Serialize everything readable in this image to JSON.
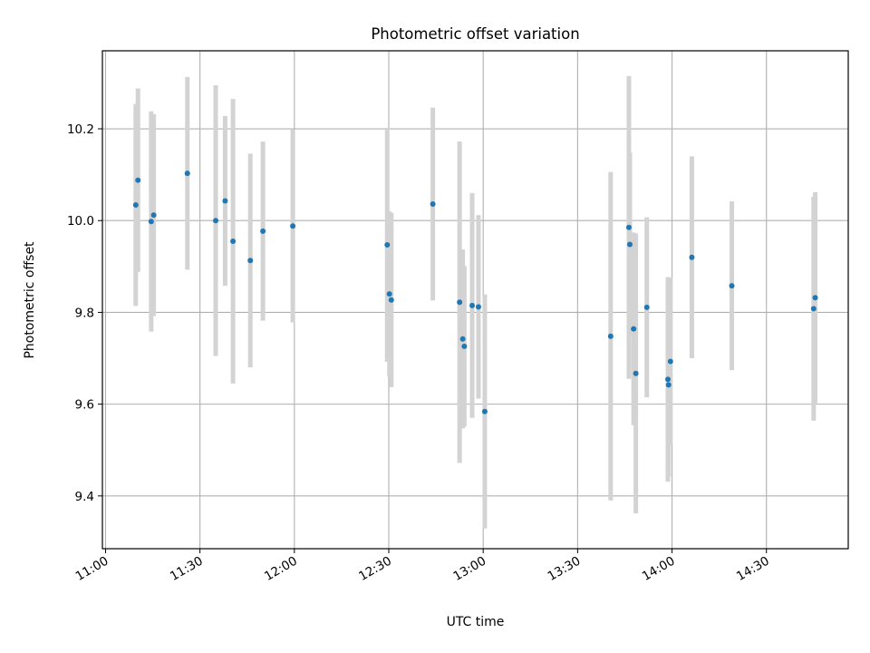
{
  "chart_data": {
    "type": "scatter",
    "title": "Photometric offset variation",
    "xlabel": "UTC time",
    "ylabel": "Photometric offset",
    "x_axis": {
      "type": "time",
      "unit": "minutes since 11:00 UTC",
      "lim": [
        -1,
        236
      ],
      "ticks": [
        0,
        30,
        60,
        90,
        120,
        150,
        180,
        210
      ],
      "tick_labels": [
        "11:00",
        "11:30",
        "12:00",
        "12:30",
        "13:00",
        "13:30",
        "14:00",
        "14:30"
      ]
    },
    "y_axis": {
      "lim": [
        9.285,
        10.37
      ],
      "ticks": [
        9.4,
        9.6,
        9.8,
        10.0,
        10.2
      ],
      "tick_labels": [
        "9.4",
        "9.6",
        "9.8",
        "10.0",
        "10.2"
      ]
    },
    "grid": true,
    "marker_color": "#1f77b4",
    "errorbar_color": "#d3d3d3",
    "points": [
      {
        "x": 9.6,
        "y": 10.034,
        "err": 0.22
      },
      {
        "x": 10.3,
        "y": 10.088,
        "err": 0.2
      },
      {
        "x": 14.5,
        "y": 9.998,
        "err": 0.24
      },
      {
        "x": 15.3,
        "y": 10.012,
        "err": 0.22
      },
      {
        "x": 26.0,
        "y": 10.103,
        "err": 0.21
      },
      {
        "x": 35.0,
        "y": 10.0,
        "err": 0.295
      },
      {
        "x": 38.0,
        "y": 10.043,
        "err": 0.185
      },
      {
        "x": 40.5,
        "y": 9.955,
        "err": 0.31
      },
      {
        "x": 46.0,
        "y": 9.913,
        "err": 0.233
      },
      {
        "x": 50.0,
        "y": 9.977,
        "err": 0.195
      },
      {
        "x": 59.5,
        "y": 9.988,
        "err": 0.21
      },
      {
        "x": 89.5,
        "y": 9.947,
        "err": 0.255
      },
      {
        "x": 90.2,
        "y": 9.84,
        "err": 0.18
      },
      {
        "x": 90.8,
        "y": 9.827,
        "err": 0.19
      },
      {
        "x": 104.0,
        "y": 10.036,
        "err": 0.21
      },
      {
        "x": 112.5,
        "y": 9.822,
        "err": 0.35
      },
      {
        "x": 113.5,
        "y": 9.742,
        "err": 0.195
      },
      {
        "x": 114.0,
        "y": 9.726,
        "err": 0.175
      },
      {
        "x": 116.5,
        "y": 9.815,
        "err": 0.245
      },
      {
        "x": 118.5,
        "y": 9.812,
        "err": 0.2
      },
      {
        "x": 120.5,
        "y": 9.584,
        "err": 0.255
      },
      {
        "x": 160.5,
        "y": 9.748,
        "err": 0.358
      },
      {
        "x": 166.3,
        "y": 9.985,
        "err": 0.33
      },
      {
        "x": 166.6,
        "y": 9.948,
        "err": 0.2
      },
      {
        "x": 167.8,
        "y": 9.764,
        "err": 0.21
      },
      {
        "x": 168.5,
        "y": 9.667,
        "err": 0.305
      },
      {
        "x": 172.0,
        "y": 9.811,
        "err": 0.196
      },
      {
        "x": 178.7,
        "y": 9.654,
        "err": 0.223
      },
      {
        "x": 178.9,
        "y": 9.642,
        "err": 0.2
      },
      {
        "x": 179.5,
        "y": 9.693,
        "err": 0.183
      },
      {
        "x": 186.3,
        "y": 9.92,
        "err": 0.22
      },
      {
        "x": 199.0,
        "y": 9.858,
        "err": 0.184
      },
      {
        "x": 225.0,
        "y": 9.808,
        "err": 0.244
      },
      {
        "x": 225.5,
        "y": 9.832,
        "err": 0.23
      }
    ]
  }
}
